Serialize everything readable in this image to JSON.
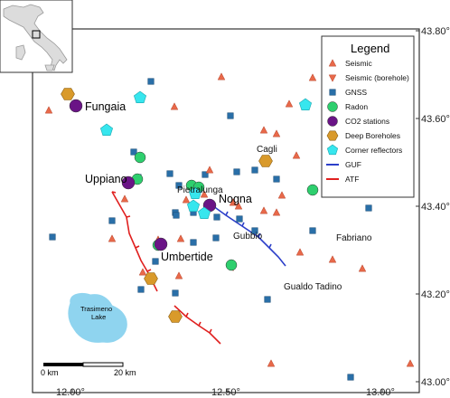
{
  "legend": {
    "title": "Legend",
    "items": [
      {
        "label": "Seismic",
        "symbol": "triangle-up",
        "color": "#e8694a"
      },
      {
        "label": "Seismic (borehole)",
        "symbol": "triangle-down",
        "color": "#e8694a"
      },
      {
        "label": "GNSS",
        "symbol": "square",
        "color": "#2a6fa8"
      },
      {
        "label": "Radon",
        "symbol": "circle",
        "color": "#2ecf6e"
      },
      {
        "label": "CO2 stations",
        "symbol": "circle",
        "color": "#6a1486"
      },
      {
        "label": "Deep Boreholes",
        "symbol": "hexagon",
        "color": "#d99a2b"
      },
      {
        "label": "Corner reflectors",
        "symbol": "pentagon",
        "color": "#37e6ee"
      },
      {
        "label": "GUF",
        "symbol": "line",
        "color": "#2c3fc9"
      },
      {
        "label": "ATF",
        "symbol": "line",
        "color": "#e0201f"
      }
    ]
  },
  "axes": {
    "lon_ticks": [
      "12.00°",
      "12.50°",
      "13.00°"
    ],
    "lat_ticks": [
      "43.80°",
      "43.60°",
      "43.40°",
      "43.20°",
      "43.00°"
    ]
  },
  "places": {
    "big": [
      "Fungaia",
      "Uppiano",
      "Nogna",
      "Umbertide"
    ],
    "small": [
      "Pietralunga",
      "Cagli",
      "Gubbio",
      "Fabriano",
      "Gualdo Tadino",
      "Trasimeno",
      "Lake"
    ]
  },
  "scalebar": {
    "start": "0 km",
    "end": "20 km"
  },
  "colors": {
    "lake": "#8fd4ef",
    "triangle": "#e8694a",
    "square": "#2a6fa8",
    "radon": "#2ecf6e",
    "co2": "#6a1486",
    "borehole": "#d99a2b",
    "reflector": "#37e6ee",
    "guf": "#2c3fc9",
    "atf": "#e0201f"
  }
}
